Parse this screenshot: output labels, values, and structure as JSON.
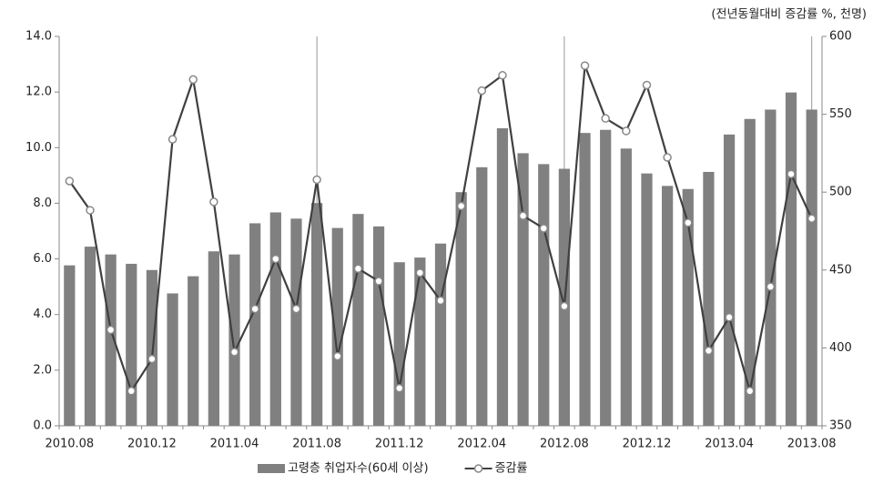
{
  "chart_data": {
    "type": "bar-line",
    "note": "(전년동월대비 증감률 %, 천명)",
    "categories": [
      "2010.08",
      null,
      null,
      null,
      "2010.12",
      null,
      null,
      null,
      "2011.04",
      null,
      null,
      null,
      "2011.08",
      null,
      null,
      null,
      "2011.12",
      null,
      null,
      null,
      "2012.04",
      null,
      null,
      null,
      "2012.08",
      null,
      null,
      null,
      "2012.12",
      null,
      null,
      null,
      "2013.04",
      null,
      null,
      null,
      "2013.08"
    ],
    "series": [
      {
        "name": "고령층 취업자수(60세 이상)",
        "kind": "bar",
        "axis": "y2",
        "color": "#808080",
        "values": [
          453,
          465,
          460,
          454,
          450,
          435,
          446,
          462,
          460,
          480,
          487,
          483,
          493,
          477,
          486,
          478,
          455,
          458,
          467,
          500,
          516,
          541,
          525,
          518,
          515,
          538,
          540,
          528,
          512,
          504,
          502,
          513,
          537,
          547,
          553,
          564,
          553
        ]
      },
      {
        "name": "증감률",
        "kind": "line",
        "axis": "y",
        "color": "#404040",
        "values": [
          8.8,
          7.75,
          3.45,
          1.25,
          2.4,
          10.3,
          12.45,
          8.05,
          2.65,
          4.2,
          6.0,
          4.2,
          8.85,
          2.5,
          5.65,
          5.2,
          1.35,
          5.5,
          4.5,
          7.9,
          12.05,
          12.6,
          7.55,
          7.1,
          4.3,
          12.95,
          11.05,
          10.6,
          12.25,
          9.65,
          7.3,
          2.7,
          3.9,
          1.25,
          5.0,
          9.05,
          7.45
        ]
      }
    ],
    "ylim": [
      0,
      14
    ],
    "yticks": [
      {
        "value": 0,
        "label": "0.0"
      },
      {
        "value": 2,
        "label": "2.0"
      },
      {
        "value": 4,
        "label": "4.0"
      },
      {
        "value": 6,
        "label": "6.0"
      },
      {
        "value": 8,
        "label": "8.0"
      },
      {
        "value": 10,
        "label": "10.0"
      },
      {
        "value": 12,
        "label": "12.0"
      },
      {
        "value": 14,
        "label": "14.0"
      }
    ],
    "y2lim": [
      350,
      600
    ],
    "y2ticks": [
      350,
      400,
      450,
      500,
      550,
      600
    ]
  }
}
